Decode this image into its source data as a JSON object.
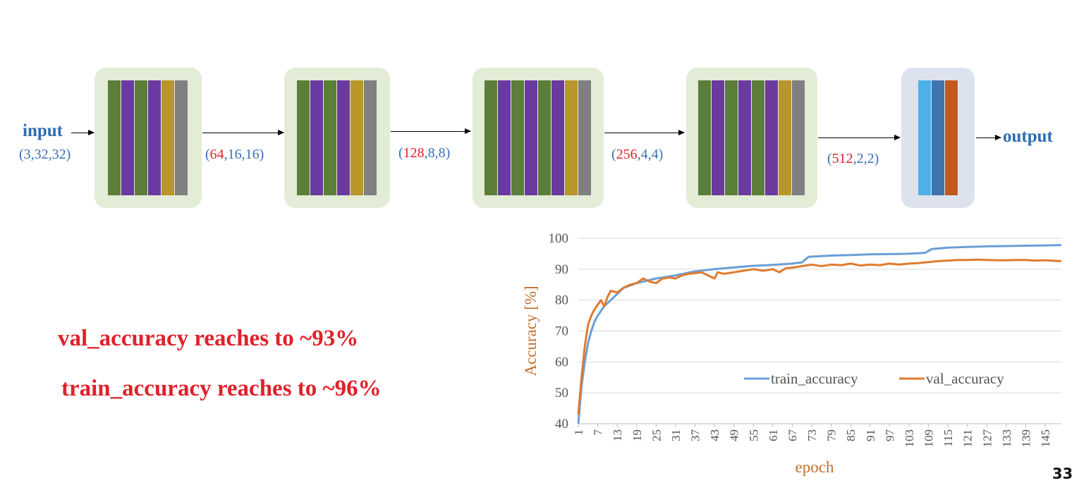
{
  "diagram": {
    "input_label": "input",
    "input_dims": "(3,32,32)",
    "output_label": "output",
    "dims": [
      {
        "open": "(",
        "num": "64",
        "rest": ",16,16)"
      },
      {
        "open": "(",
        "num": "128",
        "rest": ",8,8)"
      },
      {
        "open": "(",
        "num": "256",
        "rest": ",4,4)"
      },
      {
        "open": "(",
        "num": "512",
        "rest": ",2,2)"
      }
    ],
    "colors": {
      "conv_green": "#5b7e38",
      "relu_purple": "#6a3aa0",
      "pool_gold": "#b8962a",
      "dropout_gray": "#808080",
      "fc_light_blue": "#4fb0e8",
      "fc_blue": "#3f74ad",
      "fc_orange": "#bf5a20",
      "dim_blue": "#3a6fb3",
      "dim_red": "#e0212a"
    }
  },
  "summary": {
    "line1": "val_accuracy reaches to ~93%",
    "line2": "train_accuracy reaches to ~96%"
  },
  "chart_data": {
    "type": "line",
    "xlabel": "epoch",
    "ylabel": "Accuracy [%]",
    "ylim": [
      40,
      100
    ],
    "yticks": [
      40,
      50,
      60,
      70,
      80,
      90,
      100
    ],
    "xticks": [
      1,
      7,
      13,
      19,
      25,
      31,
      37,
      43,
      49,
      55,
      61,
      67,
      73,
      79,
      85,
      91,
      97,
      103,
      109,
      115,
      121,
      127,
      133,
      139,
      145
    ],
    "xlim": [
      1,
      150
    ],
    "grid": "horizontal",
    "legend_position": "bottom-right",
    "series": [
      {
        "name": "train_accuracy",
        "color": "#6a9fd6",
        "points": [
          [
            1,
            40
          ],
          [
            2,
            52
          ],
          [
            3,
            60
          ],
          [
            4,
            66
          ],
          [
            5,
            70
          ],
          [
            6,
            73
          ],
          [
            7,
            75
          ],
          [
            9,
            78
          ],
          [
            11,
            80
          ],
          [
            13,
            82
          ],
          [
            15,
            84
          ],
          [
            19,
            85.5
          ],
          [
            25,
            87
          ],
          [
            31,
            88
          ],
          [
            37,
            89.3
          ],
          [
            43,
            90
          ],
          [
            49,
            90.6
          ],
          [
            55,
            91.1
          ],
          [
            61,
            91.4
          ],
          [
            67,
            91.8
          ],
          [
            70,
            92.2
          ],
          [
            72,
            94
          ],
          [
            79,
            94.4
          ],
          [
            85,
            94.6
          ],
          [
            91,
            94.8
          ],
          [
            97,
            94.9
          ],
          [
            103,
            95
          ],
          [
            108,
            95.3
          ],
          [
            110,
            96.5
          ],
          [
            115,
            97
          ],
          [
            121,
            97.2
          ],
          [
            127,
            97.4
          ],
          [
            133,
            97.5
          ],
          [
            139,
            97.6
          ],
          [
            145,
            97.7
          ],
          [
            150,
            97.8
          ]
        ]
      },
      {
        "name": "val_accuracy",
        "color": "#e07b2e",
        "points": [
          [
            1,
            43
          ],
          [
            2,
            55
          ],
          [
            3,
            65
          ],
          [
            4,
            72
          ],
          [
            5,
            75
          ],
          [
            6,
            77
          ],
          [
            7,
            78.5
          ],
          [
            8,
            80
          ],
          [
            9,
            78
          ],
          [
            10,
            81
          ],
          [
            11,
            83
          ],
          [
            13,
            82.5
          ],
          [
            15,
            84
          ],
          [
            17,
            85
          ],
          [
            19,
            85.5
          ],
          [
            21,
            87
          ],
          [
            23,
            86
          ],
          [
            25,
            85.5
          ],
          [
            27,
            87
          ],
          [
            29,
            87.3
          ],
          [
            31,
            87
          ],
          [
            33,
            88
          ],
          [
            35,
            88.5
          ],
          [
            37,
            88.7
          ],
          [
            39,
            89
          ],
          [
            41,
            88
          ],
          [
            43,
            87
          ],
          [
            44,
            89
          ],
          [
            46,
            88.5
          ],
          [
            49,
            89
          ],
          [
            52,
            89.5
          ],
          [
            55,
            90
          ],
          [
            58,
            89.5
          ],
          [
            61,
            90
          ],
          [
            63,
            89
          ],
          [
            65,
            90.3
          ],
          [
            67,
            90.5
          ],
          [
            70,
            91
          ],
          [
            73,
            91.5
          ],
          [
            76,
            91
          ],
          [
            79,
            91.5
          ],
          [
            82,
            91.3
          ],
          [
            85,
            91.8
          ],
          [
            88,
            91.2
          ],
          [
            91,
            91.5
          ],
          [
            94,
            91.3
          ],
          [
            97,
            91.8
          ],
          [
            100,
            91.5
          ],
          [
            103,
            91.8
          ],
          [
            106,
            92
          ],
          [
            109,
            92.3
          ],
          [
            112,
            92.6
          ],
          [
            115,
            92.8
          ],
          [
            118,
            93
          ],
          [
            121,
            93
          ],
          [
            124,
            93.1
          ],
          [
            127,
            93
          ],
          [
            130,
            92.9
          ],
          [
            133,
            92.9
          ],
          [
            136,
            93
          ],
          [
            139,
            93
          ],
          [
            142,
            92.8
          ],
          [
            145,
            92.9
          ],
          [
            148,
            92.7
          ],
          [
            150,
            92.6
          ]
        ]
      }
    ]
  },
  "page_number": "33"
}
